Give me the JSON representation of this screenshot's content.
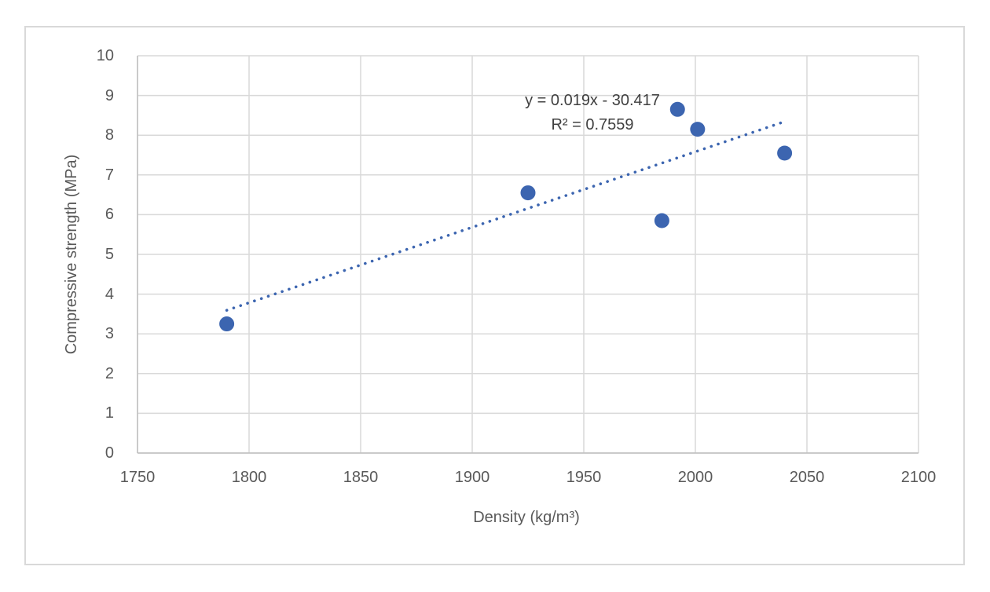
{
  "chart_data": {
    "type": "scatter",
    "title": "",
    "xlabel": "Density (kg/m³)",
    "ylabel": "Compressive strength (MPa)",
    "xlim": [
      1750,
      2100
    ],
    "ylim": [
      0,
      10
    ],
    "x_ticks": [
      "1750",
      "1800",
      "1850",
      "1900",
      "1950",
      "2000",
      "2050",
      "2100"
    ],
    "y_ticks": [
      "0",
      "1",
      "2",
      "3",
      "4",
      "5",
      "6",
      "7",
      "8",
      "9",
      "10"
    ],
    "grid": true,
    "legend": "none",
    "points": [
      {
        "x": 1790,
        "y": 3.25
      },
      {
        "x": 1925,
        "y": 6.55
      },
      {
        "x": 1985,
        "y": 5.85
      },
      {
        "x": 1992,
        "y": 8.65
      },
      {
        "x": 2001,
        "y": 8.15
      },
      {
        "x": 2040,
        "y": 7.55
      }
    ],
    "trendline": {
      "equation": "y = 0.019x - 30.417",
      "r_squared_label": "R² = 0.7559",
      "slope": 0.019,
      "intercept": -30.417,
      "x_start": 1790,
      "x_end": 2040,
      "style": "dotted"
    },
    "colors": {
      "marker": "#3C65B0",
      "trendline": "#3C65B0",
      "gridline": "#D9D9D9",
      "axis_line": "#BFBFBF",
      "tick_text": "#595959",
      "equation_text": "#404040",
      "chart_border": "#D9D9D9",
      "background": "#FFFFFF"
    }
  }
}
